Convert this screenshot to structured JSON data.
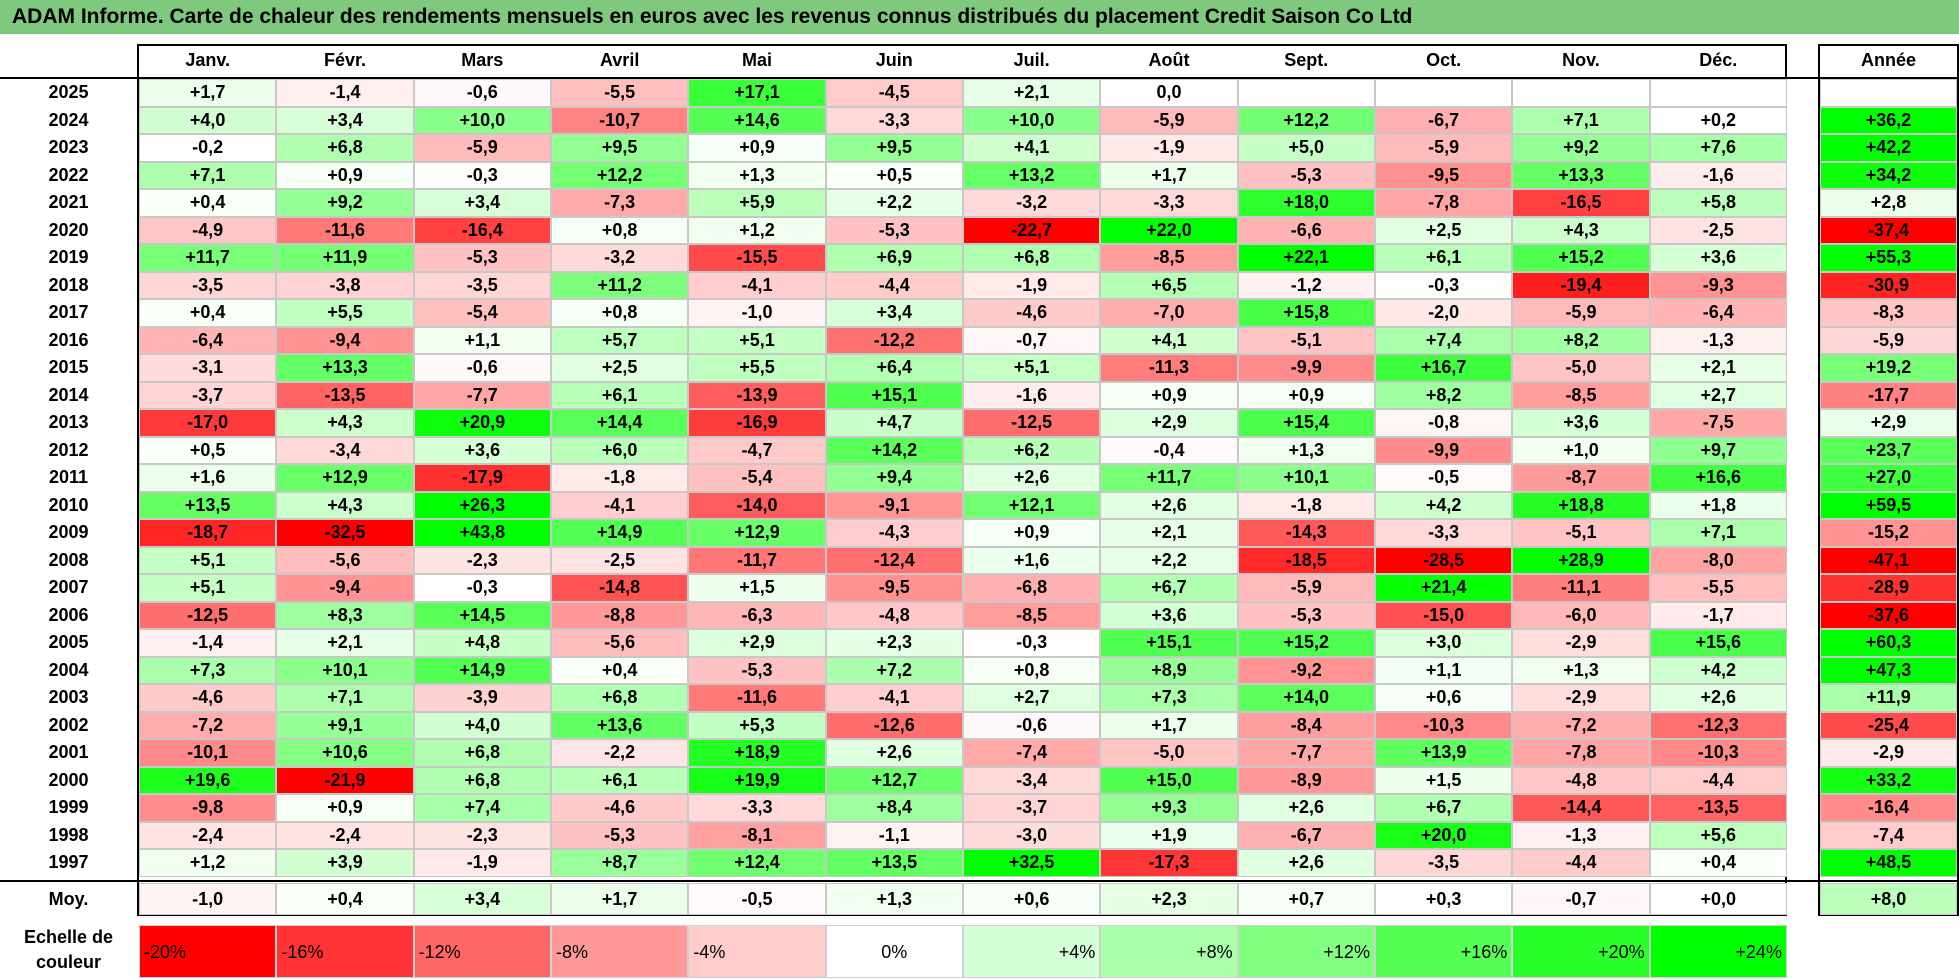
{
  "title": "ADAM Informe. Carte de chaleur des rendements mensuels en euros avec les revenus connus distribués du placement Credit Saison Co Ltd",
  "chart_data": {
    "type": "heatmap",
    "title": "ADAM Informe. Carte de chaleur des rendements mensuels en euros avec les revenus connus distribués du placement Credit Saison Co Ltd",
    "columns": [
      "Janv.",
      "Févr.",
      "Mars",
      "Avril",
      "Mai",
      "Juin",
      "Juil.",
      "Août",
      "Sept.",
      "Oct.",
      "Nov.",
      "Déc."
    ],
    "annual_header": "Année",
    "rows": [
      {
        "year": "2025",
        "values": [
          "+1,7",
          "-1,4",
          "-0,6",
          "-5,5",
          "+17,1",
          "-4,5",
          "+2,1",
          "0,0",
          "",
          "",
          "",
          ""
        ],
        "annual": ""
      },
      {
        "year": "2024",
        "values": [
          "+4,0",
          "+3,4",
          "+10,0",
          "-10,7",
          "+14,6",
          "-3,3",
          "+10,0",
          "-5,9",
          "+12,2",
          "-6,7",
          "+7,1",
          "+0,2"
        ],
        "annual": "+36,2"
      },
      {
        "year": "2023",
        "values": [
          "-0,2",
          "+6,8",
          "-5,9",
          "+9,5",
          "+0,9",
          "+9,5",
          "+4,1",
          "-1,9",
          "+5,0",
          "-5,9",
          "+9,2",
          "+7,6"
        ],
        "annual": "+42,2"
      },
      {
        "year": "2022",
        "values": [
          "+7,1",
          "+0,9",
          "-0,3",
          "+12,2",
          "+1,3",
          "+0,5",
          "+13,2",
          "+1,7",
          "-5,3",
          "-9,5",
          "+13,3",
          "-1,6"
        ],
        "annual": "+34,2"
      },
      {
        "year": "2021",
        "values": [
          "+0,4",
          "+9,2",
          "+3,4",
          "-7,3",
          "+5,9",
          "+2,2",
          "-3,2",
          "-3,3",
          "+18,0",
          "-7,8",
          "-16,5",
          "+5,8"
        ],
        "annual": "+2,8"
      },
      {
        "year": "2020",
        "values": [
          "-4,9",
          "-11,6",
          "-16,4",
          "+0,8",
          "+1,2",
          "-5,3",
          "-22,7",
          "+22,0",
          "-6,6",
          "+2,5",
          "+4,3",
          "-2,5"
        ],
        "annual": "-37,4"
      },
      {
        "year": "2019",
        "values": [
          "+11,7",
          "+11,9",
          "-5,3",
          "-3,2",
          "-15,5",
          "+6,9",
          "+6,8",
          "-8,5",
          "+22,1",
          "+6,1",
          "+15,2",
          "+3,6"
        ],
        "annual": "+55,3"
      },
      {
        "year": "2018",
        "values": [
          "-3,5",
          "-3,8",
          "-3,5",
          "+11,2",
          "-4,1",
          "-4,4",
          "-1,9",
          "+6,5",
          "-1,2",
          "-0,3",
          "-19,4",
          "-9,3"
        ],
        "annual": "-30,9"
      },
      {
        "year": "2017",
        "values": [
          "+0,4",
          "+5,5",
          "-5,4",
          "+0,8",
          "-1,0",
          "+3,4",
          "-4,6",
          "-7,0",
          "+15,8",
          "-2,0",
          "-5,9",
          "-6,4"
        ],
        "annual": "-8,3"
      },
      {
        "year": "2016",
        "values": [
          "-6,4",
          "-9,4",
          "+1,1",
          "+5,7",
          "+5,1",
          "-12,2",
          "-0,7",
          "+4,1",
          "-5,1",
          "+7,4",
          "+8,2",
          "-1,3"
        ],
        "annual": "-5,9"
      },
      {
        "year": "2015",
        "values": [
          "-3,1",
          "+13,3",
          "-0,6",
          "+2,5",
          "+5,5",
          "+6,4",
          "+5,1",
          "-11,3",
          "-9,9",
          "+16,7",
          "-5,0",
          "+2,1"
        ],
        "annual": "+19,2"
      },
      {
        "year": "2014",
        "values": [
          "-3,7",
          "-13,5",
          "-7,7",
          "+6,1",
          "-13,9",
          "+15,1",
          "-1,6",
          "+0,9",
          "+0,9",
          "+8,2",
          "-8,5",
          "+2,7"
        ],
        "annual": "-17,7"
      },
      {
        "year": "2013",
        "values": [
          "-17,0",
          "+4,3",
          "+20,9",
          "+14,4",
          "-16,9",
          "+4,7",
          "-12,5",
          "+2,9",
          "+15,4",
          "-0,8",
          "+3,6",
          "-7,5"
        ],
        "annual": "+2,9"
      },
      {
        "year": "2012",
        "values": [
          "+0,5",
          "-3,4",
          "+3,6",
          "+6,0",
          "-4,7",
          "+14,2",
          "+6,2",
          "-0,4",
          "+1,3",
          "-9,9",
          "+1,0",
          "+9,7"
        ],
        "annual": "+23,7"
      },
      {
        "year": "2011",
        "values": [
          "+1,6",
          "+12,9",
          "-17,9",
          "-1,8",
          "-5,4",
          "+9,4",
          "+2,6",
          "+11,7",
          "+10,1",
          "-0,5",
          "-8,7",
          "+16,6"
        ],
        "annual": "+27,0"
      },
      {
        "year": "2010",
        "values": [
          "+13,5",
          "+4,3",
          "+26,3",
          "-4,1",
          "-14,0",
          "-9,1",
          "+12,1",
          "+2,6",
          "-1,8",
          "+4,2",
          "+18,8",
          "+1,8"
        ],
        "annual": "+59,5"
      },
      {
        "year": "2009",
        "values": [
          "-18,7",
          "-32,5",
          "+43,8",
          "+14,9",
          "+12,9",
          "-4,3",
          "+0,9",
          "+2,1",
          "-14,3",
          "-3,3",
          "-5,1",
          "+7,1"
        ],
        "annual": "-15,2"
      },
      {
        "year": "2008",
        "values": [
          "+5,1",
          "-5,6",
          "-2,3",
          "-2,5",
          "-11,7",
          "-12,4",
          "+1,6",
          "+2,2",
          "-18,5",
          "-28,5",
          "+28,9",
          "-8,0"
        ],
        "annual": "-47,1"
      },
      {
        "year": "2007",
        "values": [
          "+5,1",
          "-9,4",
          "-0,3",
          "-14,8",
          "+1,5",
          "-9,5",
          "-6,8",
          "+6,7",
          "-5,9",
          "+21,4",
          "-11,1",
          "-5,5"
        ],
        "annual": "-28,9"
      },
      {
        "year": "2006",
        "values": [
          "-12,5",
          "+8,3",
          "+14,5",
          "-8,8",
          "-6,3",
          "-4,8",
          "-8,5",
          "+3,6",
          "-5,3",
          "-15,0",
          "-6,0",
          "-1,7"
        ],
        "annual": "-37,6"
      },
      {
        "year": "2005",
        "values": [
          "-1,4",
          "+2,1",
          "+4,8",
          "-5,6",
          "+2,9",
          "+2,3",
          "-0,3",
          "+15,1",
          "+15,2",
          "+3,0",
          "-2,9",
          "+15,6"
        ],
        "annual": "+60,3"
      },
      {
        "year": "2004",
        "values": [
          "+7,3",
          "+10,1",
          "+14,9",
          "+0,4",
          "-5,3",
          "+7,2",
          "+0,8",
          "+8,9",
          "-9,2",
          "+1,1",
          "+1,3",
          "+4,2"
        ],
        "annual": "+47,3"
      },
      {
        "year": "2003",
        "values": [
          "-4,6",
          "+7,1",
          "-3,9",
          "+6,8",
          "-11,6",
          "-4,1",
          "+2,7",
          "+7,3",
          "+14,0",
          "+0,6",
          "-2,9",
          "+2,6"
        ],
        "annual": "+11,9"
      },
      {
        "year": "2002",
        "values": [
          "-7,2",
          "+9,1",
          "+4,0",
          "+13,6",
          "+5,3",
          "-12,6",
          "-0,6",
          "+1,7",
          "-8,4",
          "-10,3",
          "-7,2",
          "-12,3"
        ],
        "annual": "-25,4"
      },
      {
        "year": "2001",
        "values": [
          "-10,1",
          "+10,6",
          "+6,8",
          "-2,2",
          "+18,9",
          "+2,6",
          "-7,4",
          "-5,0",
          "-7,7",
          "+13,9",
          "-7,8",
          "-10,3"
        ],
        "annual": "-2,9"
      },
      {
        "year": "2000",
        "values": [
          "+19,6",
          "-21,9",
          "+6,8",
          "+6,1",
          "+19,9",
          "+12,7",
          "-3,4",
          "+15,0",
          "-8,9",
          "+1,5",
          "-4,8",
          "-4,4"
        ],
        "annual": "+33,2"
      },
      {
        "year": "1999",
        "values": [
          "-9,8",
          "+0,9",
          "+7,4",
          "-4,6",
          "-3,3",
          "+8,4",
          "-3,7",
          "+9,3",
          "+2,6",
          "+6,7",
          "-14,4",
          "-13,5"
        ],
        "annual": "-16,4"
      },
      {
        "year": "1998",
        "values": [
          "-2,4",
          "-2,4",
          "-2,3",
          "-5,3",
          "-8,1",
          "-1,1",
          "-3,0",
          "+1,9",
          "-6,7",
          "+20,0",
          "-1,3",
          "+5,6"
        ],
        "annual": "-7,4"
      },
      {
        "year": "1997",
        "values": [
          "+1,2",
          "+3,9",
          "-1,9",
          "+8,7",
          "+12,4",
          "+13,5",
          "+32,5",
          "-17,3",
          "+2,6",
          "-3,5",
          "-4,4",
          "+0,4"
        ],
        "annual": "+48,5"
      }
    ],
    "average": {
      "label": "Moy.",
      "values": [
        "-1,0",
        "+0,4",
        "+3,4",
        "+1,7",
        "-0,5",
        "+1,3",
        "+0,6",
        "+2,3",
        "+0,7",
        "+0,3",
        "-0,7",
        "+0,0"
      ],
      "annual": "+8,0"
    },
    "scale": {
      "label": "Echelle de couleur",
      "steps": [
        "-20%",
        "-16%",
        "-12%",
        "-8%",
        "-4%",
        "0%",
        "+4%",
        "+8%",
        "+12%",
        "+16%",
        "+20%",
        "+24%"
      ]
    },
    "colors": {
      "negative_max": "#ff0000",
      "neutral": "#ffffff",
      "positive_max": "#00ff00",
      "title_bar": "#7fc97f"
    }
  }
}
